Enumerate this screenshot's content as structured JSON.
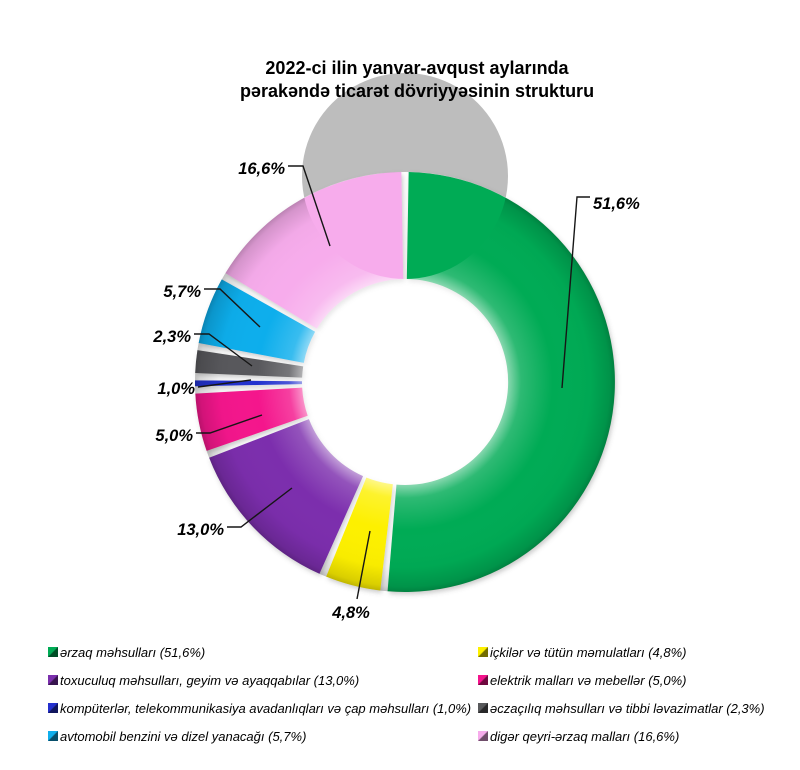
{
  "title": {
    "line1": "2022-ci ilin yanvar-avqust aylarında",
    "line2": "pərakəndə ticarət dövriyyəsinin strukturu"
  },
  "chart_data": {
    "type": "pie",
    "subtype": "donut-3d",
    "title": "2022-ci ilin yanvar-avqust aylarında pərakəndə ticarət dövriyyəsinin strukturu",
    "start_angle_deg": 0,
    "direction": "clockwise",
    "units": "%",
    "slices": [
      {
        "label": "ərzaq məhsulları",
        "value": 51.6,
        "percent_label": "51,6%",
        "color": "#00AB55"
      },
      {
        "label": "içkilər və tütün məmulatları",
        "value": 4.8,
        "percent_label": "4,8%",
        "color": "#FDF000"
      },
      {
        "label": "toxuculuq məhsulları, geyim və ayaqqabılar",
        "value": 13.0,
        "percent_label": "13,0%",
        "color": "#7B2FAD"
      },
      {
        "label": "elektrik malları və mebellər",
        "value": 5.0,
        "percent_label": "5,0%",
        "color": "#F4148C"
      },
      {
        "label": "kompüterlər, telekommunikasiya avadanlıqları və çap məhsulları",
        "value": 1.0,
        "percent_label": "1,0%",
        "color": "#2430CE"
      },
      {
        "label": "əczaçılıq məhsulları və tibbi ləvazimatlar",
        "value": 2.3,
        "percent_label": "2,3%",
        "color": "#58595B"
      },
      {
        "label": "avtomobil benzini və dizel yanacağı",
        "value": 5.7,
        "percent_label": "5,7%",
        "color": "#0FAEEC"
      },
      {
        "label": "digər qeyri-ərzaq malları",
        "value": 16.6,
        "percent_label": "16,6%",
        "color": "#F7ACEC"
      }
    ],
    "legend": {
      "position": "bottom",
      "columns": [
        [
          {
            "text": "ərzaq məhsulları (51,6%)",
            "slice": 0
          },
          {
            "text": "toxuculuq məhsulları, geyim və ayaqqabılar (13,0%)",
            "slice": 2
          },
          {
            "text": "kompüterlər, telekommunikasiya avadanlıqları və çap məhsulları (1,0%)",
            "slice": 4
          },
          {
            "text": "avtomobil benzini və dizel yanacağı (5,7%)",
            "slice": 6
          }
        ],
        [
          {
            "text": "içkilər və tütün məmulatları (4,8%)",
            "slice": 1
          },
          {
            "text": "elektrik malları və mebellər (5,0%)",
            "slice": 3
          },
          {
            "text": "əczaçılıq məhsulları və tibbi ləvazimatlar (2,3%)",
            "slice": 5
          },
          {
            "text": "digər qeyri-ərzaq malları (16,6%)",
            "slice": 7
          }
        ]
      ]
    }
  }
}
